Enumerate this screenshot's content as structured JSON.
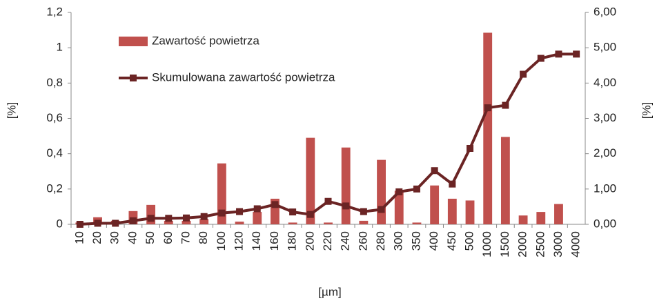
{
  "chart_data": {
    "type": "bar-line",
    "categories": [
      "10",
      "20",
      "30",
      "40",
      "50",
      "60",
      "70",
      "80",
      "100",
      "120",
      "140",
      "160",
      "180",
      "200",
      "220",
      "240",
      "260",
      "280",
      "300",
      "350",
      "400",
      "450",
      "500",
      "1000",
      "1500",
      "2000",
      "2500",
      "3000",
      "4000"
    ],
    "series": [
      {
        "name": "Zawartość powietrza",
        "color": "#c0504d",
        "type": "bar",
        "values": [
          0.01,
          0.04,
          0.02,
          0.075,
          0.11,
          0.02,
          0.02,
          0.03,
          0.345,
          0.015,
          0.07,
          0.145,
          0.01,
          0.49,
          0.01,
          0.435,
          0.02,
          0.365,
          0.19,
          0.01,
          0.22,
          0.145,
          0.135,
          1.085,
          0.495,
          0.05,
          0.07,
          0.115,
          0
        ]
      },
      {
        "name": "Skumulowana zawartość powietrza",
        "color": "#6b2424",
        "type": "line",
        "axis": "y2",
        "values": [
          0,
          0.03,
          0.03,
          0.1,
          0.17,
          0.17,
          0.18,
          0.22,
          0.32,
          0.36,
          0.44,
          0.56,
          0.35,
          0.28,
          0.65,
          0.52,
          0.36,
          0.42,
          0.92,
          1.0,
          1.52,
          1.14,
          2.15,
          3.3,
          3.37,
          4.25,
          4.7,
          4.82,
          4.82
        ]
      }
    ],
    "ylabel": "[%]",
    "y2label": "[%]",
    "xlabel": "[µm]",
    "ylim": [
      0,
      1.2
    ],
    "yticks": [
      0,
      {
        "value": 0.2,
        "label": "0,2"
      },
      {
        "value": 0.4,
        "label": "0,4"
      },
      {
        "value": 0.6,
        "label": "0,6"
      },
      {
        "value": 0.8,
        "label": "0,8"
      },
      1,
      {
        "value": 1.2,
        "label": "1,2"
      }
    ],
    "y2lim": [
      0,
      6
    ],
    "y2ticks": [
      {
        "value": 0,
        "label": "0,00"
      },
      {
        "value": 1,
        "label": "1,00"
      },
      {
        "value": 2,
        "label": "2,00"
      },
      {
        "value": 3,
        "label": "3,00"
      },
      {
        "value": 4,
        "label": "4,00"
      },
      {
        "value": 5,
        "label": "5,00"
      },
      {
        "value": 6,
        "label": "6,00"
      }
    ],
    "legend": "top-left"
  }
}
